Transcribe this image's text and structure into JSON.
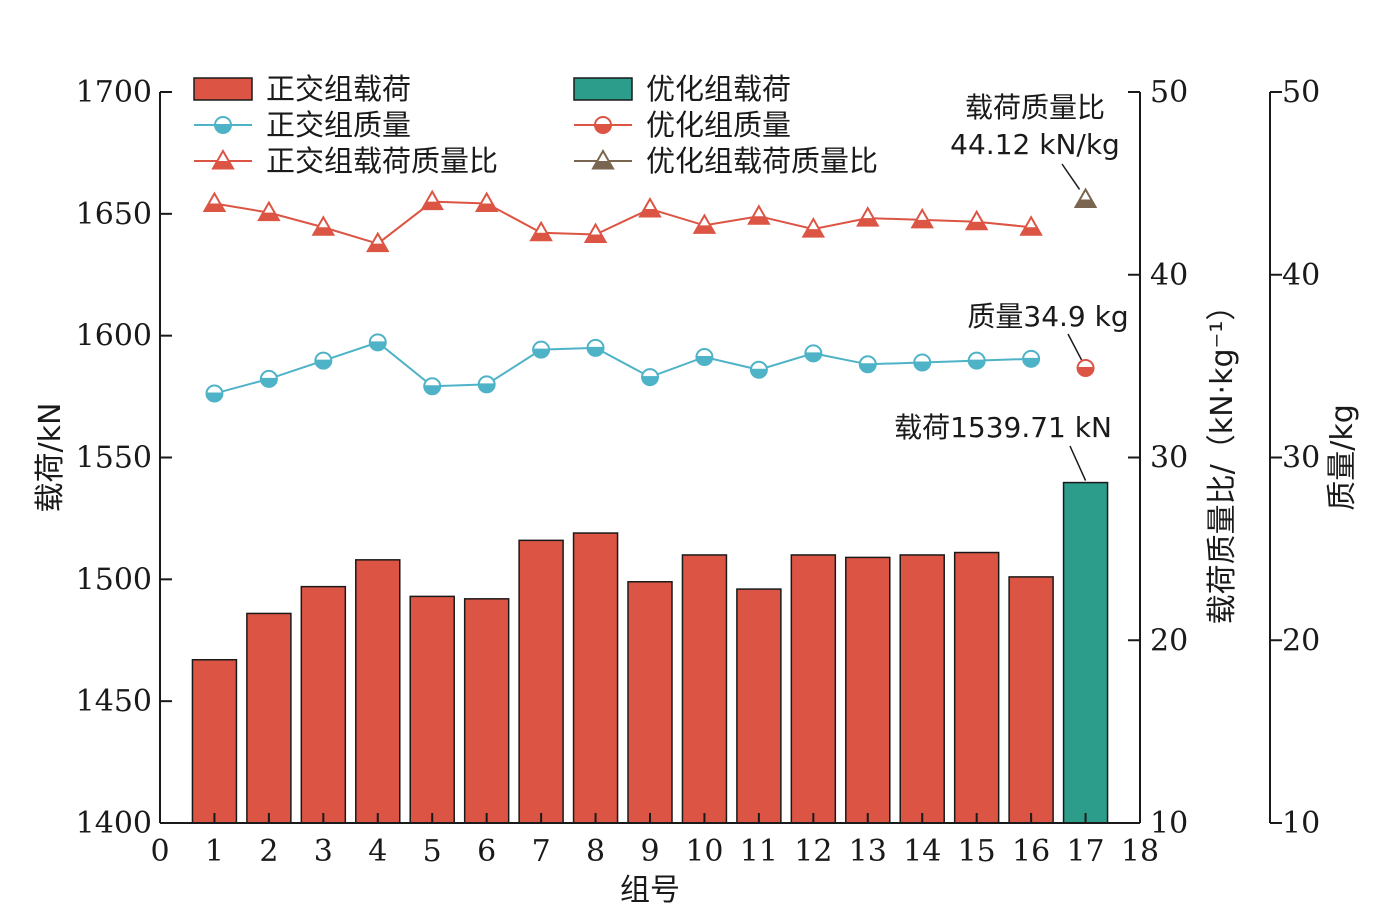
{
  "chart_data": {
    "type": "bar",
    "xlabel": "组号",
    "ylabel_left": "载荷/kN",
    "ylabel_ratio": "载荷质量比/（kN·kg⁻¹）",
    "ylabel_mass": "质量/kg",
    "x_ticks": [
      "0",
      "1",
      "2",
      "3",
      "4",
      "5",
      "6",
      "7",
      "8",
      "9",
      "10",
      "11",
      "12",
      "13",
      "14",
      "15",
      "16",
      "17",
      "18"
    ],
    "xlim": [
      0,
      18
    ],
    "ylim_left": [
      1400,
      1700
    ],
    "ylim_ratio": [
      10,
      50
    ],
    "ylim_mass": [
      10,
      50
    ],
    "left_ticks": [
      "1400",
      "1450",
      "1500",
      "1550",
      "1600",
      "1650",
      "1700"
    ],
    "ratio_ticks": [
      "10",
      "20",
      "30",
      "40",
      "50"
    ],
    "mass_ticks": [
      "10",
      "20",
      "30",
      "40",
      "50"
    ],
    "series": [
      {
        "name": "正交组载荷",
        "kind": "bar",
        "axis": "left",
        "color": "#dc5443",
        "x": [
          1,
          2,
          3,
          4,
          5,
          6,
          7,
          8,
          9,
          10,
          11,
          12,
          13,
          14,
          15,
          16
        ],
        "values": [
          1467,
          1486,
          1497,
          1508,
          1493,
          1492,
          1516,
          1519,
          1499,
          1510,
          1496,
          1510,
          1509,
          1510,
          1511,
          1501
        ]
      },
      {
        "name": "优化组载荷",
        "kind": "bar",
        "axis": "left",
        "color": "#2b9d8a",
        "x": [
          17
        ],
        "values": [
          1539.71
        ]
      },
      {
        "name": "正交组质量",
        "kind": "line",
        "marker": "circle",
        "axis": "mass",
        "color": "#4fb3c8",
        "x": [
          1,
          2,
          3,
          4,
          5,
          6,
          7,
          8,
          9,
          10,
          11,
          12,
          13,
          14,
          15,
          16
        ],
        "values": [
          33.5,
          34.3,
          35.3,
          36.3,
          33.9,
          34.0,
          35.9,
          36.0,
          34.4,
          35.5,
          34.8,
          35.7,
          35.1,
          35.2,
          35.3,
          35.4
        ]
      },
      {
        "name": "优化组质量",
        "kind": "line",
        "marker": "circle",
        "axis": "mass",
        "color": "#dc5443",
        "x": [
          17
        ],
        "values": [
          34.9
        ]
      },
      {
        "name": "正交组载荷质量比",
        "kind": "line",
        "marker": "triangle",
        "axis": "ratio",
        "color": "#dc5443",
        "x": [
          1,
          2,
          3,
          4,
          5,
          6,
          7,
          8,
          9,
          10,
          11,
          12,
          13,
          14,
          15,
          16
        ],
        "values": [
          43.9,
          43.4,
          42.6,
          41.7,
          44.0,
          43.9,
          42.3,
          42.2,
          43.6,
          42.7,
          43.2,
          42.5,
          43.1,
          43.0,
          42.9,
          42.6
        ]
      },
      {
        "name": "优化组载荷质量比",
        "kind": "line",
        "marker": "triangle",
        "axis": "ratio",
        "color": "#7a6550",
        "x": [
          17
        ],
        "values": [
          44.12
        ]
      }
    ],
    "annotations": [
      {
        "text": "载荷质量比",
        "text2": "44.12 kN/kg",
        "x": 17,
        "value": 44.12,
        "axis": "ratio"
      },
      {
        "text": "质量34.9 kg",
        "x": 17,
        "value": 34.9,
        "axis": "mass"
      },
      {
        "text": "载荷1539.71 kN",
        "x": 17,
        "value": 1539.71,
        "axis": "left"
      }
    ],
    "legend_position": "top-left"
  }
}
